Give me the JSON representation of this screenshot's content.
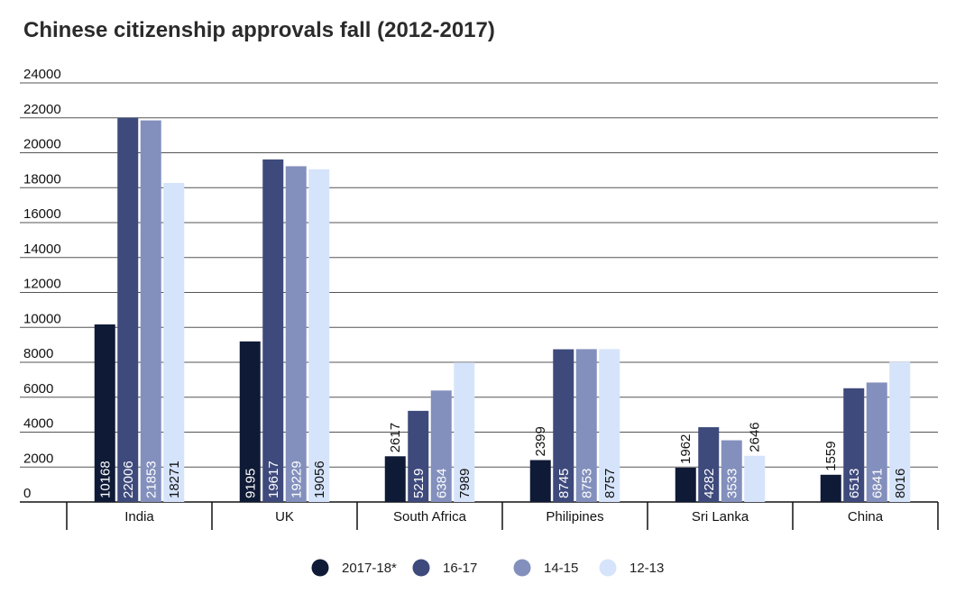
{
  "chart_data": {
    "type": "bar",
    "title": "Chinese citizenship approvals fall (2012-2017)",
    "xlabel": "",
    "ylabel": "",
    "ylim": [
      0,
      24000
    ],
    "yticks": [
      0,
      2000,
      4000,
      6000,
      8000,
      10000,
      12000,
      14000,
      16000,
      18000,
      20000,
      22000,
      24000
    ],
    "categories": [
      "India",
      "UK",
      "South Africa",
      "Philipines",
      "Sri Lanka",
      "China"
    ],
    "series": [
      {
        "name": "2017-18*",
        "color": "#0f1a36",
        "label_color": "#ffffff",
        "values": [
          10168,
          9195,
          2617,
          2399,
          1962,
          1559
        ]
      },
      {
        "name": "16-17",
        "color": "#3e4a7c",
        "label_color": "#ffffff",
        "values": [
          22006,
          19617,
          5219,
          8745,
          4282,
          6513
        ]
      },
      {
        "name": "14-15",
        "color": "#8390bd",
        "label_color": "#ffffff",
        "values": [
          21853,
          19229,
          6384,
          8753,
          3533,
          6841
        ]
      },
      {
        "name": "12-13",
        "color": "#d6e4fb",
        "label_color": "#111111",
        "values": [
          18271,
          19056,
          7989,
          8757,
          2646,
          8016
        ]
      }
    ],
    "grid": true,
    "legend_position": "bottom-center"
  }
}
